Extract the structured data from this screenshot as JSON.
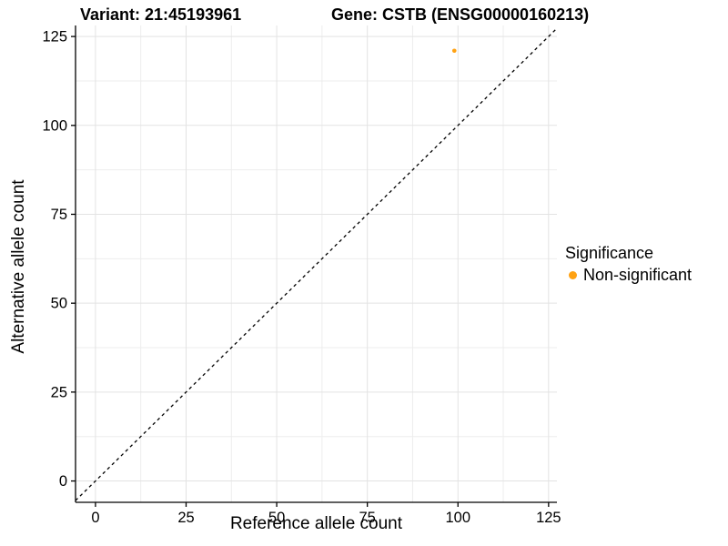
{
  "titles": {
    "variant": "Variant: 21:45193961",
    "gene": "Gene: CSTB (ENSG00000160213)"
  },
  "axes": {
    "x_title": "Reference allele count",
    "y_title": "Alternative allele count"
  },
  "legend": {
    "title": "Significance",
    "items": [
      {
        "label": "Non-significant",
        "color": "#FFA213"
      }
    ]
  },
  "chart_data": {
    "type": "scatter",
    "title": "Variant: 21:45193961   Gene: CSTB (ENSG00000160213)",
    "xlabel": "Reference allele count",
    "ylabel": "Alternative allele count",
    "xlim": [
      -5.5,
      127.3
    ],
    "ylim": [
      -6,
      128.1
    ],
    "x_ticks": [
      0,
      25,
      50,
      75,
      100,
      125
    ],
    "y_ticks": [
      0,
      25,
      50,
      75,
      100,
      125
    ],
    "x_minor_ticks": [
      12.5,
      37.5,
      62.5,
      87.5,
      112.5
    ],
    "y_minor_ticks": [
      12.5,
      37.5,
      62.5,
      87.5,
      112.5
    ],
    "grid": true,
    "legend_position": "right",
    "series": [
      {
        "name": "Non-significant",
        "color": "#FFA213",
        "marker": "circle",
        "points": [
          {
            "x": 99,
            "y": 121
          }
        ]
      }
    ],
    "reference_line": {
      "slope": 1,
      "intercept": 0,
      "style": "dashed",
      "color": "#000000"
    }
  }
}
